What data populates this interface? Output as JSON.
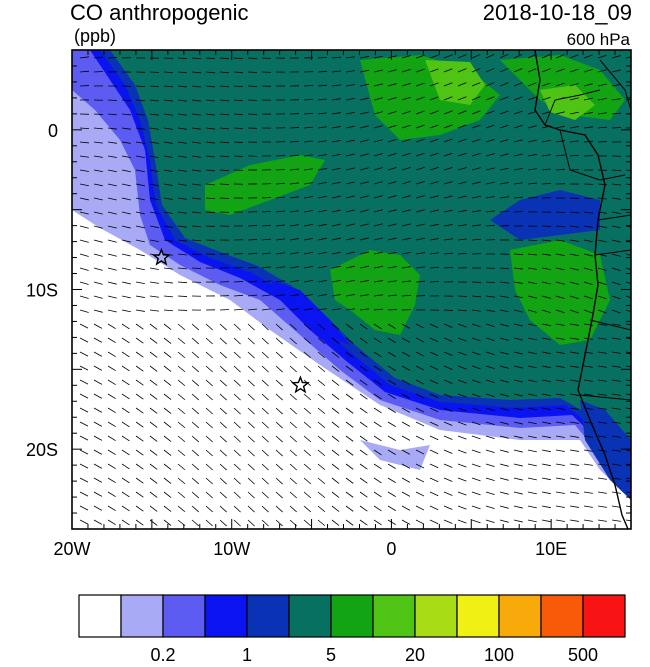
{
  "header": {
    "title": "CO anthropogenic",
    "units": "(ppb)",
    "datetime": "2018-10-18_09",
    "level": "600 hPa"
  },
  "map": {
    "lon_range": [
      -20,
      15
    ],
    "lat_range": [
      -25,
      5
    ],
    "x_ticks": [
      {
        "lon": -20,
        "label": "20W"
      },
      {
        "lon": -10,
        "label": "10W"
      },
      {
        "lon": 0,
        "label": "0"
      },
      {
        "lon": 10,
        "label": "10E"
      }
    ],
    "y_ticks": [
      {
        "lat": 0,
        "label": "0"
      },
      {
        "lat": -10,
        "label": "10S"
      },
      {
        "lat": -20,
        "label": "20S"
      }
    ],
    "markers": [
      {
        "name": "star-marker",
        "lon": -14.4,
        "lat": -8.0
      },
      {
        "name": "star-marker",
        "lon": -5.7,
        "lat": -16.0
      }
    ]
  },
  "colorbar": {
    "colors": [
      "#ffffff",
      "#a8aaf5",
      "#5c5cf3",
      "#0a14f0",
      "#0a32b4",
      "#087060",
      "#12a412",
      "#4fc414",
      "#a8dc14",
      "#f0f014",
      "#f8aa0a",
      "#f85a0a",
      "#f81414"
    ],
    "labels": [
      {
        "after_box": 2,
        "text": "0.2"
      },
      {
        "after_box": 4,
        "text": "1"
      },
      {
        "after_box": 6,
        "text": "5"
      },
      {
        "after_box": 8,
        "text": "20"
      },
      {
        "after_box": 10,
        "text": "100"
      },
      {
        "after_box": 12,
        "text": "500"
      }
    ]
  }
}
